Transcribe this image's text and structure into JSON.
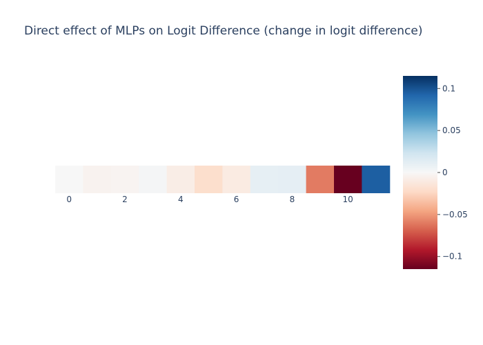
{
  "chart_data": {
    "type": "heatmap",
    "title": "Direct effect of MLPs on Logit Difference (change in logit difference)",
    "xlabel": "",
    "ylabel": "",
    "x": [
      0,
      1,
      2,
      3,
      4,
      5,
      6,
      7,
      8,
      9,
      10,
      11
    ],
    "x_tick_labels": [
      "0",
      "2",
      "4",
      "6",
      "8",
      "10"
    ],
    "x_tick_values": [
      0,
      2,
      4,
      6,
      8,
      10
    ],
    "values": [
      0.0,
      -0.004,
      -0.003,
      0.002,
      -0.008,
      -0.02,
      -0.01,
      0.01,
      0.011,
      -0.06,
      -0.115,
      0.095
    ],
    "colorscale": {
      "name": "RdBu",
      "range": [
        -0.115,
        0.115
      ],
      "tick_labels": [
        "0.1",
        "0.05",
        "0",
        "−0.05",
        "−0.1"
      ],
      "tick_values": [
        0.1,
        0.05,
        0,
        -0.05,
        -0.1
      ],
      "stops": [
        "#67001f",
        "#b2182b",
        "#d6604d",
        "#f4a582",
        "#fddbc7",
        "#f7f7f7",
        "#d1e5f0",
        "#92c5de",
        "#4393c3",
        "#2166ac",
        "#053061"
      ]
    },
    "grid": false,
    "legend": "colorbar-right"
  }
}
